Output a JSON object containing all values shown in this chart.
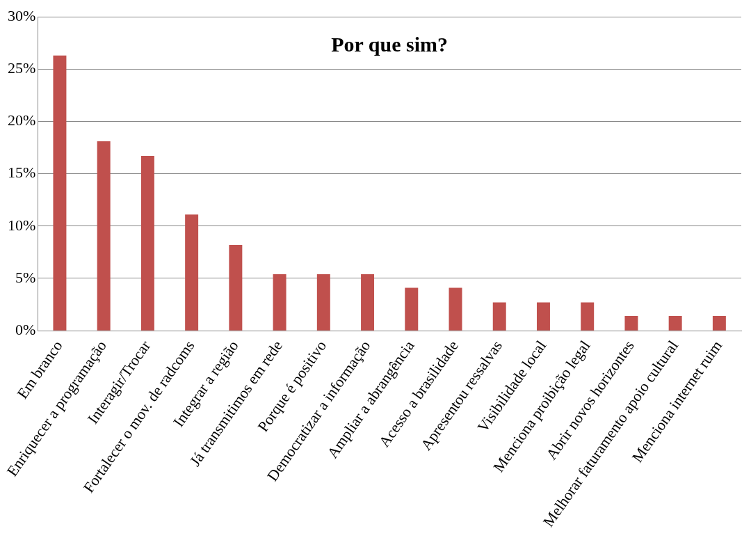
{
  "chart_data": {
    "type": "bar",
    "title": "Por que sim?",
    "categories": [
      "Em branco",
      "Enriquecer a programação",
      "Interagir/Trocar",
      "Fortalecer o mov. de radcoms",
      "Integrar a região",
      "Já transmitimos em rede",
      "Porque é positivo",
      "Democratizar a informação",
      "Ampliar a abrangência",
      "Acesso a brasilidade",
      "Apresentou ressalvas",
      "Visibilidade local",
      "Menciona proibição legal",
      "Abrir novos horizontes",
      "Melhorar faturamento apoio cultural",
      "Menciona internet ruim"
    ],
    "values": [
      26.3,
      18.1,
      16.7,
      11.1,
      8.2,
      5.4,
      5.4,
      5.4,
      4.1,
      4.1,
      2.7,
      2.7,
      2.7,
      1.4,
      1.4,
      1.4
    ],
    "color": "#c0504d",
    "ylim": [
      0,
      30
    ],
    "yticks": [
      {
        "value": 0,
        "label": "0%"
      },
      {
        "value": 5,
        "label": "5%"
      },
      {
        "value": 10,
        "label": "10%"
      },
      {
        "value": 15,
        "label": "15%"
      },
      {
        "value": 20,
        "label": "20%"
      },
      {
        "value": 25,
        "label": "25%"
      },
      {
        "value": 30,
        "label": "30%"
      }
    ],
    "grid": "y",
    "legend": false
  }
}
